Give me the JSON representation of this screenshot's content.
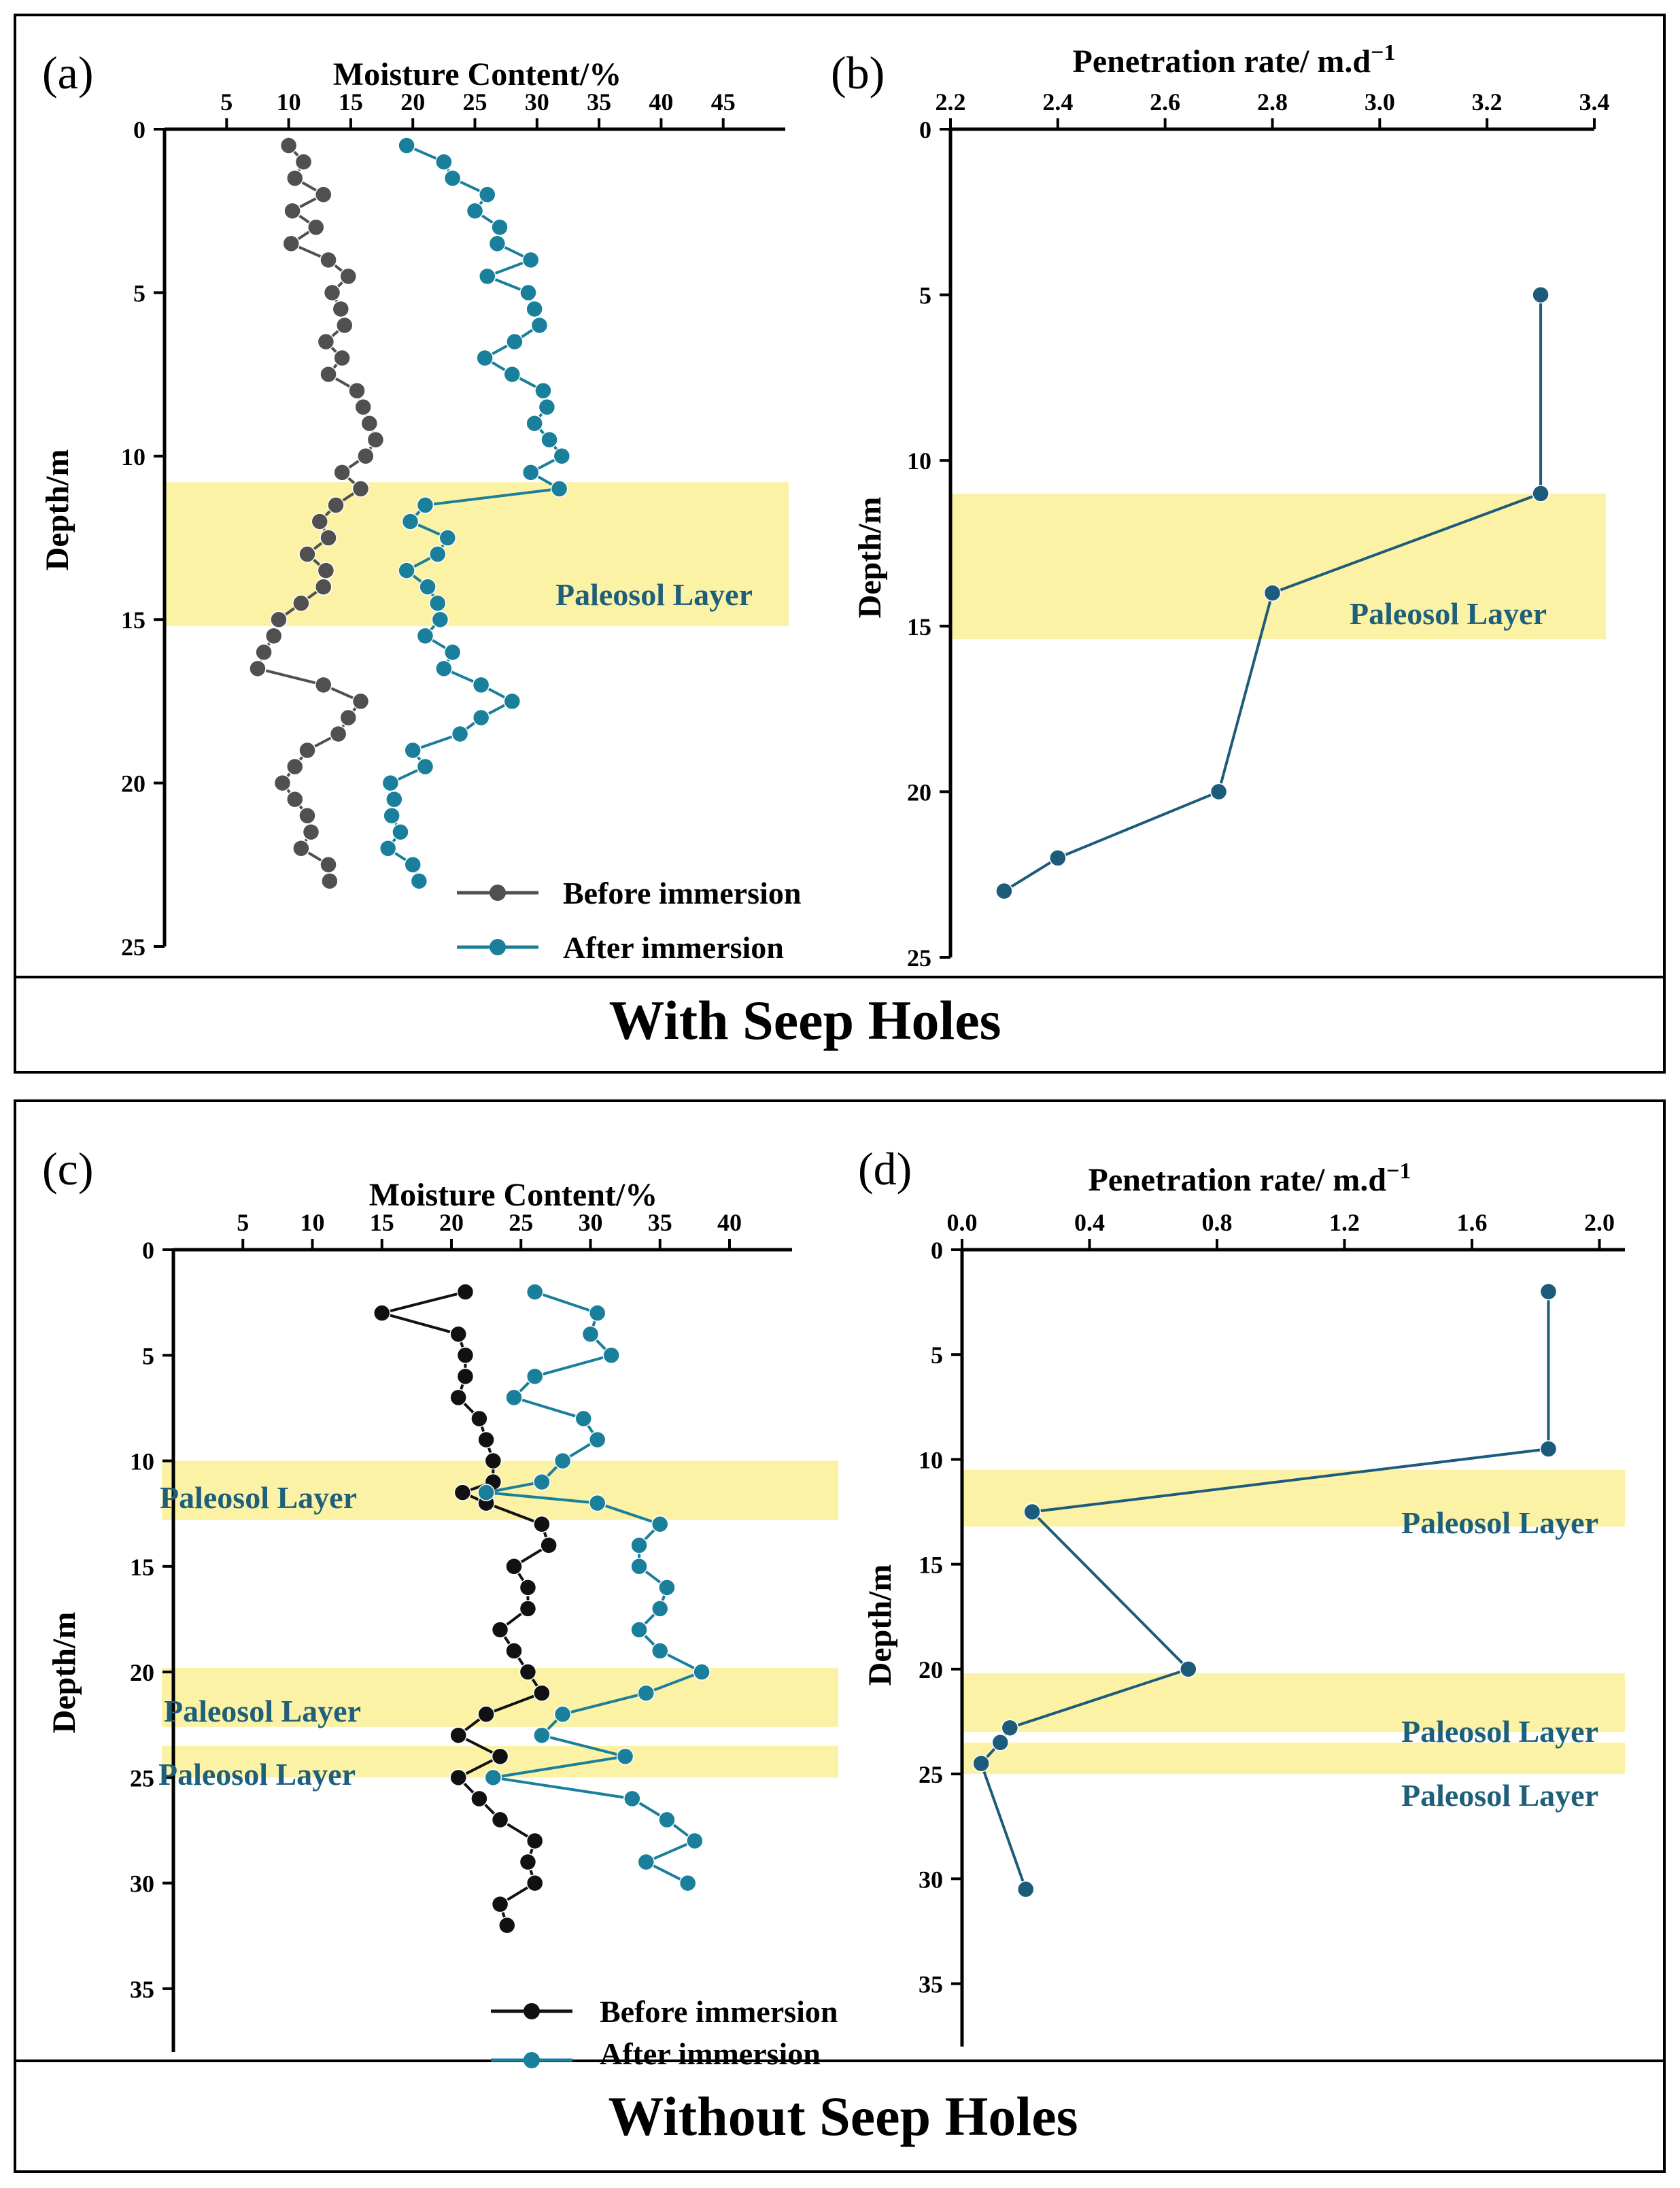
{
  "colors": {
    "before": "#505050",
    "before_c": "#111111",
    "after": "#1a7f9b",
    "rate": "#1d5b7a",
    "band": "#fbf2a6",
    "band_text": "#1e5f7a"
  },
  "group_top": {
    "label": "With Seep Holes"
  },
  "group_bottom": {
    "label": "Without Seep Holes"
  },
  "chart_data": [
    {
      "id": "a",
      "type": "line",
      "panel_label": "(a)",
      "title": "Moisture Content/%",
      "xlabel": "Moisture Content/%",
      "ylabel": "Depth/m",
      "xlim": [
        0,
        50
      ],
      "ylim": [
        0,
        25
      ],
      "xticks": [
        5,
        10,
        15,
        20,
        25,
        30,
        35,
        40,
        45
      ],
      "yticks": [
        0,
        5,
        10,
        15,
        20,
        25
      ],
      "bands": [
        {
          "from": 10.8,
          "to": 15.2,
          "label": "Paleosol Layer"
        }
      ],
      "legend": [
        "Before immersion",
        "After   immersion"
      ],
      "series": [
        {
          "name": "Before immersion",
          "color": "before",
          "points": [
            [
              10.0,
              0.5
            ],
            [
              11.2,
              1.0
            ],
            [
              10.5,
              1.5
            ],
            [
              12.8,
              2.0
            ],
            [
              10.3,
              2.5
            ],
            [
              12.2,
              3.0
            ],
            [
              10.2,
              3.5
            ],
            [
              13.2,
              4.0
            ],
            [
              14.8,
              4.5
            ],
            [
              13.5,
              5.0
            ],
            [
              14.2,
              5.5
            ],
            [
              14.5,
              6.0
            ],
            [
              13.0,
              6.5
            ],
            [
              14.3,
              7.0
            ],
            [
              13.2,
              7.5
            ],
            [
              15.5,
              8.0
            ],
            [
              16.0,
              8.5
            ],
            [
              16.5,
              9.0
            ],
            [
              17.0,
              9.5
            ],
            [
              16.2,
              10.0
            ],
            [
              14.3,
              10.5
            ],
            [
              15.8,
              11.0
            ],
            [
              13.8,
              11.5
            ],
            [
              12.5,
              12.0
            ],
            [
              13.2,
              12.5
            ],
            [
              11.5,
              13.0
            ],
            [
              13.0,
              13.5
            ],
            [
              12.8,
              14.0
            ],
            [
              11.0,
              14.5
            ],
            [
              9.2,
              15.0
            ],
            [
              8.8,
              15.5
            ],
            [
              8.0,
              16.0
            ],
            [
              7.5,
              16.5
            ],
            [
              12.8,
              17.0
            ],
            [
              15.8,
              17.5
            ],
            [
              14.8,
              18.0
            ],
            [
              14.0,
              18.5
            ],
            [
              11.5,
              19.0
            ],
            [
              10.5,
              19.5
            ],
            [
              9.5,
              20.0
            ],
            [
              10.5,
              20.5
            ],
            [
              11.5,
              21.0
            ],
            [
              11.8,
              21.5
            ],
            [
              11.0,
              22.0
            ],
            [
              13.2,
              22.5
            ],
            [
              13.3,
              23.0
            ]
          ]
        },
        {
          "name": "After   immersion",
          "color": "after",
          "points": [
            [
              19.5,
              0.5
            ],
            [
              22.5,
              1.0
            ],
            [
              23.2,
              1.5
            ],
            [
              26.0,
              2.0
            ],
            [
              25.0,
              2.5
            ],
            [
              27.0,
              3.0
            ],
            [
              26.8,
              3.5
            ],
            [
              29.5,
              4.0
            ],
            [
              26.0,
              4.5
            ],
            [
              29.3,
              5.0
            ],
            [
              29.8,
              5.5
            ],
            [
              30.2,
              6.0
            ],
            [
              28.2,
              6.5
            ],
            [
              25.8,
              7.0
            ],
            [
              28.0,
              7.5
            ],
            [
              30.5,
              8.0
            ],
            [
              30.8,
              8.5
            ],
            [
              29.8,
              9.0
            ],
            [
              31.0,
              9.5
            ],
            [
              32.0,
              10.0
            ],
            [
              29.5,
              10.5
            ],
            [
              31.8,
              11.0
            ],
            [
              21.0,
              11.5
            ],
            [
              19.8,
              12.0
            ],
            [
              22.8,
              12.5
            ],
            [
              22.0,
              13.0
            ],
            [
              19.5,
              13.5
            ],
            [
              21.2,
              14.0
            ],
            [
              22.0,
              14.5
            ],
            [
              22.2,
              15.0
            ],
            [
              21.0,
              15.5
            ],
            [
              23.2,
              16.0
            ],
            [
              22.5,
              16.5
            ],
            [
              25.5,
              17.0
            ],
            [
              28.0,
              17.5
            ],
            [
              25.5,
              18.0
            ],
            [
              23.8,
              18.5
            ],
            [
              20.0,
              19.0
            ],
            [
              21.0,
              19.5
            ],
            [
              18.2,
              20.0
            ],
            [
              18.5,
              20.5
            ],
            [
              18.3,
              21.0
            ],
            [
              19.0,
              21.5
            ],
            [
              18.0,
              22.0
            ],
            [
              20.0,
              22.5
            ],
            [
              20.5,
              23.0
            ]
          ]
        }
      ]
    },
    {
      "id": "b",
      "type": "line",
      "panel_label": "(b)",
      "title": "Penetration rate/ m.d",
      "xlabel": "Penetration rate/ m.d",
      "xlabel_sup": "−1",
      "ylabel": "Depth/m",
      "xlim": [
        2.2,
        3.4
      ],
      "ylim": [
        0,
        25
      ],
      "xticks": [
        "2.2",
        "2.4",
        "2.6",
        "2.8",
        "3.0",
        "3.2",
        "3.4"
      ],
      "yticks": [
        0,
        5,
        10,
        15,
        20,
        25
      ],
      "bands": [
        {
          "from": 11.0,
          "to": 15.4,
          "label": "Paleosol Layer"
        }
      ],
      "series": [
        {
          "name": "Penetration rate",
          "color": "rate",
          "points": [
            [
              3.3,
              5.0
            ],
            [
              3.3,
              11.0
            ],
            [
              2.8,
              14.0
            ],
            [
              2.7,
              20.0
            ],
            [
              2.4,
              22.0
            ],
            [
              2.3,
              23.0
            ]
          ]
        }
      ]
    },
    {
      "id": "c",
      "type": "line",
      "panel_label": "(c)",
      "title": "Moisture Content/%",
      "xlabel": "Moisture Content/%",
      "ylabel": "Depth/m",
      "xlim": [
        0,
        44.5
      ],
      "ylim": [
        0,
        38
      ],
      "xticks": [
        5,
        10,
        15,
        20,
        25,
        30,
        35,
        40
      ],
      "yticks": [
        0,
        5,
        10,
        15,
        20,
        25,
        30,
        35
      ],
      "bands": [
        {
          "from": 10.0,
          "to": 12.8,
          "label": "Paleosol Layer"
        },
        {
          "from": 19.8,
          "to": 22.6,
          "label": "Paleosol Layer"
        },
        {
          "from": 23.5,
          "to": 25.0,
          "label": "Paleosol Layer"
        }
      ],
      "legend": [
        "Before immersion",
        "After   immersion"
      ],
      "series": [
        {
          "name": "Before immersion",
          "color": "before_c",
          "points": [
            [
              21.0,
              2.0
            ],
            [
              15.0,
              3.0
            ],
            [
              20.5,
              4.0
            ],
            [
              21.0,
              5.0
            ],
            [
              21.0,
              6.0
            ],
            [
              20.5,
              7.0
            ],
            [
              22.0,
              8.0
            ],
            [
              22.5,
              9.0
            ],
            [
              23.0,
              10.0
            ],
            [
              23.0,
              11.0
            ],
            [
              20.8,
              11.5
            ],
            [
              22.5,
              12.0
            ],
            [
              26.5,
              13.0
            ],
            [
              27.0,
              14.0
            ],
            [
              24.5,
              15.0
            ],
            [
              25.5,
              16.0
            ],
            [
              25.5,
              17.0
            ],
            [
              23.5,
              18.0
            ],
            [
              24.5,
              19.0
            ],
            [
              25.5,
              20.0
            ],
            [
              26.5,
              21.0
            ],
            [
              22.5,
              22.0
            ],
            [
              20.5,
              23.0
            ],
            [
              23.5,
              24.0
            ],
            [
              20.5,
              25.0
            ],
            [
              22.0,
              26.0
            ],
            [
              23.5,
              27.0
            ],
            [
              26.0,
              28.0
            ],
            [
              25.5,
              29.0
            ],
            [
              26.0,
              30.0
            ],
            [
              23.5,
              31.0
            ],
            [
              24.0,
              32.0
            ]
          ]
        },
        {
          "name": "After   immersion",
          "color": "after",
          "points": [
            [
              26.0,
              2.0
            ],
            [
              30.5,
              3.0
            ],
            [
              30.0,
              4.0
            ],
            [
              31.5,
              5.0
            ],
            [
              26.0,
              6.0
            ],
            [
              24.5,
              7.0
            ],
            [
              29.5,
              8.0
            ],
            [
              30.5,
              9.0
            ],
            [
              28.0,
              10.0
            ],
            [
              26.5,
              11.0
            ],
            [
              22.5,
              11.5
            ],
            [
              30.5,
              12.0
            ],
            [
              35.0,
              13.0
            ],
            [
              33.5,
              14.0
            ],
            [
              33.5,
              15.0
            ],
            [
              35.5,
              16.0
            ],
            [
              35.0,
              17.0
            ],
            [
              33.5,
              18.0
            ],
            [
              35.0,
              19.0
            ],
            [
              38.0,
              20.0
            ],
            [
              34.0,
              21.0
            ],
            [
              28.0,
              22.0
            ],
            [
              26.5,
              23.0
            ],
            [
              32.5,
              24.0
            ],
            [
              23.0,
              25.0
            ],
            [
              33.0,
              26.0
            ],
            [
              35.5,
              27.0
            ],
            [
              37.5,
              28.0
            ],
            [
              34.0,
              29.0
            ],
            [
              37.0,
              30.0
            ]
          ]
        }
      ]
    },
    {
      "id": "d",
      "type": "line",
      "panel_label": "(d)",
      "title": "Penetration rate/ m.d",
      "xlabel": "Penetration rate/ m.d",
      "xlabel_sup": "−1",
      "ylabel": "Depth/m",
      "xlim": [
        0.0,
        2.08
      ],
      "ylim": [
        0,
        38
      ],
      "xticks": [
        "0.0",
        "0.4",
        "0.8",
        "1.2",
        "1.6",
        "2.0"
      ],
      "yticks": [
        0,
        5,
        10,
        15,
        20,
        25,
        30,
        35
      ],
      "bands": [
        {
          "from": 10.5,
          "to": 13.2,
          "label": "Paleosol Layer"
        },
        {
          "from": 20.2,
          "to": 23.0,
          "label": "Paleosol Layer"
        },
        {
          "from": 23.5,
          "to": 25.0,
          "label": "Paleosol Layer"
        }
      ],
      "series": [
        {
          "name": "Penetration rate",
          "color": "rate",
          "points": [
            [
              1.84,
              2.0
            ],
            [
              1.84,
              9.5
            ],
            [
              0.22,
              12.5
            ],
            [
              0.71,
              20.0
            ],
            [
              0.15,
              22.8
            ],
            [
              0.12,
              23.5
            ],
            [
              0.06,
              24.5
            ],
            [
              0.2,
              30.5
            ]
          ]
        }
      ]
    }
  ]
}
